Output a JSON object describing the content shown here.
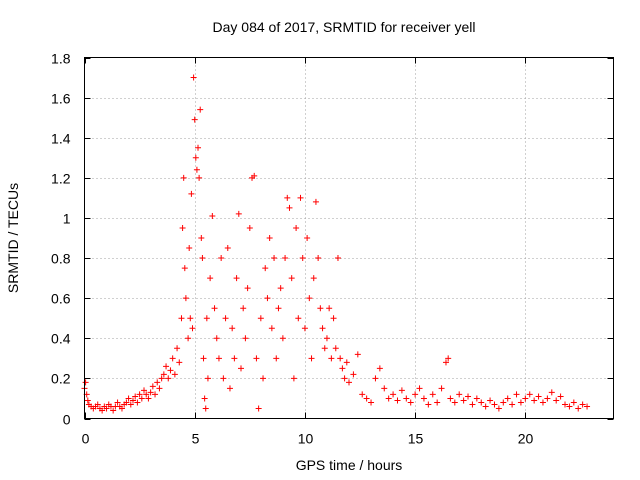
{
  "chart_data": {
    "type": "scatter",
    "title": "Day 084 of 2017, SRMTID for receiver yell",
    "xlabel": "GPS time / hours",
    "ylabel": "SRMTID / TECUs",
    "xlim": [
      0,
      24
    ],
    "ylim": [
      0,
      1.8
    ],
    "x_ticks": [
      0,
      5,
      10,
      15,
      20
    ],
    "x_tick_labels": [
      "0",
      "5",
      "10",
      "15",
      "20"
    ],
    "y_ticks": [
      0,
      0.2,
      0.4,
      0.6,
      0.8,
      1,
      1.2,
      1.4,
      1.6,
      1.8
    ],
    "y_tick_labels": [
      "0",
      "0.2",
      "0.4",
      "0.6",
      "0.8",
      "1",
      "1.2",
      "1.4",
      "1.6",
      "1.8"
    ],
    "grid": true,
    "marker": "plus",
    "marker_color": "#ff0000",
    "series": [
      {
        "name": "SRMTID",
        "points": [
          [
            0.0,
            0.15
          ],
          [
            0.05,
            0.18
          ],
          [
            0.1,
            0.12
          ],
          [
            0.15,
            0.09
          ],
          [
            0.2,
            0.07
          ],
          [
            0.3,
            0.06
          ],
          [
            0.4,
            0.05
          ],
          [
            0.5,
            0.06
          ],
          [
            0.6,
            0.07
          ],
          [
            0.7,
            0.05
          ],
          [
            0.8,
            0.04
          ],
          [
            0.9,
            0.06
          ],
          [
            1.0,
            0.05
          ],
          [
            1.1,
            0.07
          ],
          [
            1.2,
            0.06
          ],
          [
            1.3,
            0.04
          ],
          [
            1.4,
            0.06
          ],
          [
            1.5,
            0.08
          ],
          [
            1.6,
            0.06
          ],
          [
            1.7,
            0.05
          ],
          [
            1.8,
            0.07
          ],
          [
            1.9,
            0.08
          ],
          [
            2.0,
            0.1
          ],
          [
            2.1,
            0.07
          ],
          [
            2.2,
            0.09
          ],
          [
            2.3,
            0.11
          ],
          [
            2.4,
            0.08
          ],
          [
            2.5,
            0.12
          ],
          [
            2.6,
            0.1
          ],
          [
            2.7,
            0.14
          ],
          [
            2.8,
            0.12
          ],
          [
            2.9,
            0.1
          ],
          [
            3.0,
            0.13
          ],
          [
            3.1,
            0.16
          ],
          [
            3.2,
            0.12
          ],
          [
            3.3,
            0.18
          ],
          [
            3.4,
            0.15
          ],
          [
            3.5,
            0.2
          ],
          [
            3.6,
            0.22
          ],
          [
            3.7,
            0.26
          ],
          [
            3.8,
            0.2
          ],
          [
            3.9,
            0.24
          ],
          [
            4.0,
            0.3
          ],
          [
            4.1,
            0.22
          ],
          [
            4.2,
            0.35
          ],
          [
            4.3,
            0.28
          ],
          [
            4.4,
            0.5
          ],
          [
            4.45,
            0.95
          ],
          [
            4.5,
            1.2
          ],
          [
            4.55,
            0.75
          ],
          [
            4.6,
            0.6
          ],
          [
            4.7,
            0.4
          ],
          [
            4.75,
            0.85
          ],
          [
            4.8,
            0.5
          ],
          [
            4.85,
            1.12
          ],
          [
            4.9,
            0.45
          ],
          [
            4.95,
            1.7
          ],
          [
            5.0,
            1.49
          ],
          [
            5.05,
            1.3
          ],
          [
            5.1,
            1.24
          ],
          [
            5.15,
            1.35
          ],
          [
            5.2,
            1.2
          ],
          [
            5.25,
            1.54
          ],
          [
            5.3,
            0.9
          ],
          [
            5.35,
            0.8
          ],
          [
            5.4,
            0.3
          ],
          [
            5.45,
            0.1
          ],
          [
            5.5,
            0.05
          ],
          [
            5.55,
            0.5
          ],
          [
            5.6,
            0.2
          ],
          [
            5.7,
            0.7
          ],
          [
            5.8,
            1.01
          ],
          [
            5.9,
            0.55
          ],
          [
            6.0,
            0.4
          ],
          [
            6.1,
            0.3
          ],
          [
            6.2,
            0.8
          ],
          [
            6.3,
            0.2
          ],
          [
            6.4,
            0.5
          ],
          [
            6.5,
            0.85
          ],
          [
            6.6,
            0.15
          ],
          [
            6.7,
            0.45
          ],
          [
            6.8,
            0.3
          ],
          [
            6.9,
            0.7
          ],
          [
            7.0,
            1.02
          ],
          [
            7.1,
            0.25
          ],
          [
            7.2,
            0.55
          ],
          [
            7.3,
            0.4
          ],
          [
            7.4,
            0.65
          ],
          [
            7.5,
            0.95
          ],
          [
            7.6,
            1.2
          ],
          [
            7.7,
            1.21
          ],
          [
            7.8,
            0.3
          ],
          [
            7.9,
            0.05
          ],
          [
            8.0,
            0.5
          ],
          [
            8.1,
            0.2
          ],
          [
            8.2,
            0.75
          ],
          [
            8.3,
            0.6
          ],
          [
            8.4,
            0.9
          ],
          [
            8.5,
            0.45
          ],
          [
            8.6,
            0.8
          ],
          [
            8.7,
            0.3
          ],
          [
            8.8,
            0.55
          ],
          [
            8.9,
            0.65
          ],
          [
            9.0,
            0.4
          ],
          [
            9.1,
            0.8
          ],
          [
            9.2,
            1.1
          ],
          [
            9.3,
            1.05
          ],
          [
            9.4,
            0.7
          ],
          [
            9.5,
            0.2
          ],
          [
            9.6,
            0.95
          ],
          [
            9.7,
            0.5
          ],
          [
            9.8,
            1.1
          ],
          [
            9.9,
            0.8
          ],
          [
            10.0,
            0.45
          ],
          [
            10.1,
            0.9
          ],
          [
            10.2,
            0.6
          ],
          [
            10.3,
            0.3
          ],
          [
            10.4,
            0.7
          ],
          [
            10.5,
            1.08
          ],
          [
            10.6,
            0.8
          ],
          [
            10.7,
            0.55
          ],
          [
            10.8,
            0.45
          ],
          [
            10.9,
            0.35
          ],
          [
            11.0,
            0.4
          ],
          [
            11.1,
            0.55
          ],
          [
            11.2,
            0.3
          ],
          [
            11.3,
            0.5
          ],
          [
            11.4,
            0.35
          ],
          [
            11.5,
            0.8
          ],
          [
            11.6,
            0.3
          ],
          [
            11.7,
            0.25
          ],
          [
            11.8,
            0.2
          ],
          [
            11.9,
            0.28
          ],
          [
            12.0,
            0.18
          ],
          [
            12.2,
            0.22
          ],
          [
            12.4,
            0.32
          ],
          [
            12.6,
            0.12
          ],
          [
            12.8,
            0.1
          ],
          [
            13.0,
            0.08
          ],
          [
            13.2,
            0.2
          ],
          [
            13.4,
            0.25
          ],
          [
            13.6,
            0.15
          ],
          [
            13.8,
            0.1
          ],
          [
            14.0,
            0.12
          ],
          [
            14.2,
            0.09
          ],
          [
            14.4,
            0.14
          ],
          [
            14.6,
            0.1
          ],
          [
            14.8,
            0.08
          ],
          [
            15.0,
            0.12
          ],
          [
            15.2,
            0.15
          ],
          [
            15.4,
            0.1
          ],
          [
            15.6,
            0.07
          ],
          [
            15.8,
            0.12
          ],
          [
            16.0,
            0.08
          ],
          [
            16.2,
            0.15
          ],
          [
            16.4,
            0.28
          ],
          [
            16.5,
            0.3
          ],
          [
            16.6,
            0.1
          ],
          [
            16.8,
            0.08
          ],
          [
            17.0,
            0.12
          ],
          [
            17.2,
            0.09
          ],
          [
            17.4,
            0.11
          ],
          [
            17.6,
            0.07
          ],
          [
            17.8,
            0.1
          ],
          [
            18.0,
            0.08
          ],
          [
            18.2,
            0.06
          ],
          [
            18.4,
            0.09
          ],
          [
            18.6,
            0.07
          ],
          [
            18.8,
            0.05
          ],
          [
            19.0,
            0.08
          ],
          [
            19.2,
            0.1
          ],
          [
            19.4,
            0.07
          ],
          [
            19.6,
            0.12
          ],
          [
            19.8,
            0.08
          ],
          [
            20.0,
            0.1
          ],
          [
            20.2,
            0.12
          ],
          [
            20.4,
            0.09
          ],
          [
            20.6,
            0.11
          ],
          [
            20.8,
            0.08
          ],
          [
            21.0,
            0.1
          ],
          [
            21.2,
            0.13
          ],
          [
            21.4,
            0.09
          ],
          [
            21.6,
            0.11
          ],
          [
            21.8,
            0.07
          ],
          [
            22.0,
            0.06
          ],
          [
            22.2,
            0.08
          ],
          [
            22.4,
            0.05
          ],
          [
            22.6,
            0.07
          ],
          [
            22.8,
            0.06
          ]
        ]
      }
    ]
  }
}
